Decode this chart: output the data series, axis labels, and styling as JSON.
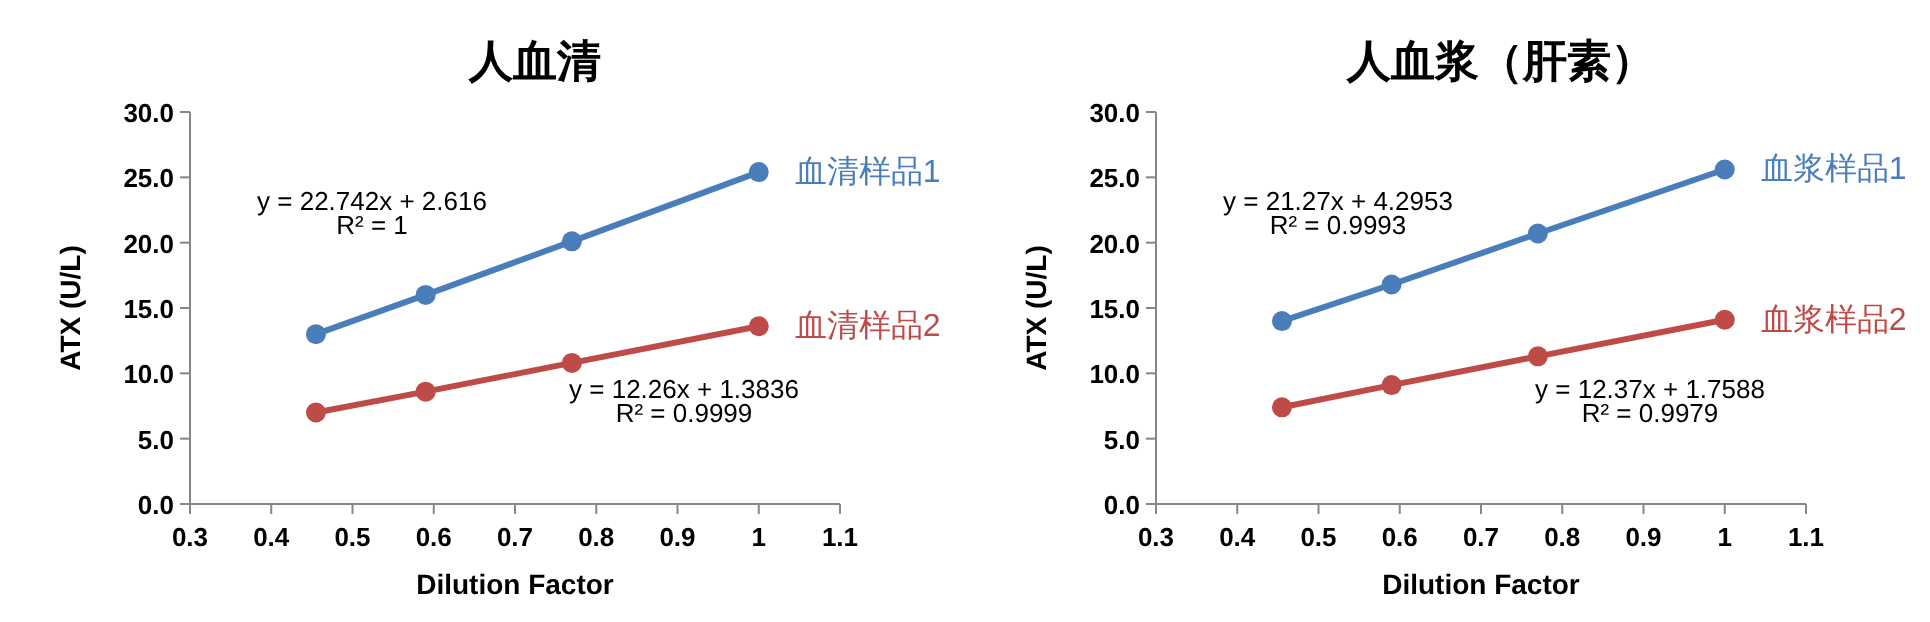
{
  "chart_data": [
    {
      "type": "line",
      "title": "人血清",
      "xlabel": "Dilution Factor",
      "ylabel": "ATX (U/L)",
      "x": [
        0.455,
        0.59,
        0.77,
        1
      ],
      "series": [
        {
          "name": "血清样品1",
          "color": "#4a7ebb",
          "values": [
            13.0,
            16.0,
            20.1,
            25.4
          ]
        },
        {
          "name": "血清样品2",
          "color": "#be4b48",
          "values": [
            7.0,
            8.6,
            10.8,
            13.6
          ]
        }
      ],
      "xlim": [
        0.3,
        1.1
      ],
      "xticks": [
        0.3,
        0.4,
        0.5,
        0.6,
        0.7,
        0.8,
        0.9,
        1,
        1.1
      ],
      "ylim": [
        0,
        30
      ],
      "yticks": [
        {
          "value": 0,
          "label": "0.0"
        },
        {
          "value": 5,
          "label": "5.0"
        },
        {
          "value": 10,
          "label": "10.0"
        },
        {
          "value": 15,
          "label": "15.0"
        },
        {
          "value": 20,
          "label": "20.0"
        },
        {
          "value": 25,
          "label": "25.0"
        },
        {
          "value": 30,
          "label": "30.0"
        }
      ],
      "annotations": [
        "y = 22.742x + 2.616",
        "R² = 1",
        "y = 12.26x + 1.3836",
        "R² = 0.9999"
      ],
      "marker": "circle",
      "line_style": "solid",
      "grid": false
    },
    {
      "type": "line",
      "title": "人血浆（肝素）",
      "xlabel": "Dilution Factor",
      "ylabel": "ATX (U/L)",
      "x": [
        0.455,
        0.59,
        0.77,
        1
      ],
      "series": [
        {
          "name": "血浆样品1",
          "color": "#4a7ebb",
          "values": [
            14.0,
            16.8,
            20.7,
            25.6
          ]
        },
        {
          "name": "血浆样品2",
          "color": "#be4b48",
          "values": [
            7.4,
            9.1,
            11.3,
            14.1
          ]
        }
      ],
      "xlim": [
        0.3,
        1.1
      ],
      "xticks": [
        0.3,
        0.4,
        0.5,
        0.6,
        0.7,
        0.8,
        0.9,
        1,
        1.1
      ],
      "ylim": [
        0,
        30
      ],
      "yticks": [
        {
          "value": 0,
          "label": "0.0"
        },
        {
          "value": 5,
          "label": "5.0"
        },
        {
          "value": 10,
          "label": "10.0"
        },
        {
          "value": 15,
          "label": "15.0"
        },
        {
          "value": 20,
          "label": "20.0"
        },
        {
          "value": 25,
          "label": "25.0"
        },
        {
          "value": 30,
          "label": "30.0"
        }
      ],
      "annotations": [
        "y = 21.27x + 4.2953",
        "R² = 0.9993",
        "y = 12.37x + 1.7588",
        "R² = 0.9979"
      ],
      "marker": "circle",
      "line_style": "solid",
      "grid": false
    }
  ]
}
